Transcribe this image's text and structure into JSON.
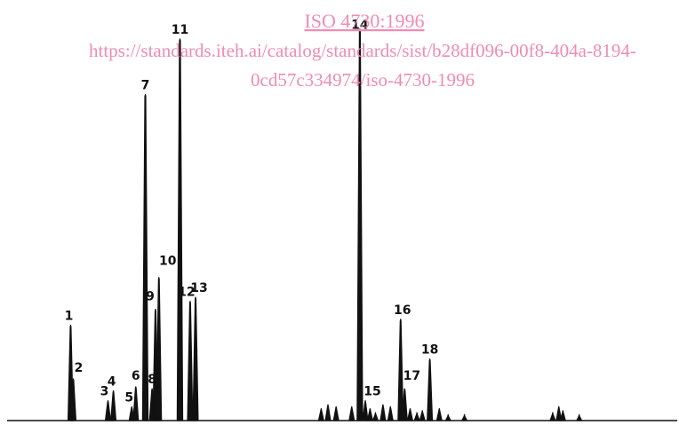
{
  "watermark": {
    "title": "ISO 4730:1996",
    "url_line1": "https://standards.iteh.ai/catalog/standards/sist/b28df096-00f8-404a-8194-",
    "url_line2": "0cd57c334974/iso-4730-1996",
    "color": "#f08cb0"
  },
  "chart_data": {
    "type": "line",
    "title": "",
    "xlabel": "",
    "ylabel": "",
    "grid": false,
    "xlim": [
      0,
      100
    ],
    "ylim": [
      0,
      100
    ],
    "line_color": "#111111",
    "peaks": [
      {
        "label": "1",
        "x": 10.4,
        "height": 24.0
      },
      {
        "label": "2",
        "x": 10.8,
        "height": 10.5
      },
      {
        "label": "3",
        "x": 15.9,
        "height": 5.0
      },
      {
        "label": "4",
        "x": 16.7,
        "height": 7.5
      },
      {
        "label": "5",
        "x": 19.4,
        "height": 3.5
      },
      {
        "label": "6",
        "x": 20.0,
        "height": 8.5
      },
      {
        "label": "7",
        "x": 21.4,
        "height": 82.0
      },
      {
        "label": "8",
        "x": 22.4,
        "height": 8.0
      },
      {
        "label": "9",
        "x": 22.9,
        "height": 28.0
      },
      {
        "label": "10",
        "x": 23.4,
        "height": 36.0
      },
      {
        "label": "11",
        "x": 26.5,
        "height": 96.0
      },
      {
        "label": "12",
        "x": 28.0,
        "height": 30.0
      },
      {
        "label": "13",
        "x": 28.8,
        "height": 31.0
      },
      {
        "label": "14",
        "x": 53.0,
        "height": 98.5
      },
      {
        "label": "15",
        "x": 53.8,
        "height": 5.0
      },
      {
        "label": "16",
        "x": 59.0,
        "height": 25.5
      },
      {
        "label": "17",
        "x": 59.6,
        "height": 8.0
      },
      {
        "label": "18",
        "x": 63.3,
        "height": 15.5
      }
    ],
    "unlabeled_peaks": [
      {
        "x": 47.3,
        "height": 3.0
      },
      {
        "x": 48.3,
        "height": 4.0
      },
      {
        "x": 49.5,
        "height": 3.5
      },
      {
        "x": 51.8,
        "height": 3.5
      },
      {
        "x": 54.5,
        "height": 3.0
      },
      {
        "x": 55.3,
        "height": 2.0
      },
      {
        "x": 56.4,
        "height": 4.0
      },
      {
        "x": 57.5,
        "height": 3.5
      },
      {
        "x": 60.4,
        "height": 3.0
      },
      {
        "x": 61.4,
        "height": 2.0
      },
      {
        "x": 62.2,
        "height": 2.5
      },
      {
        "x": 64.7,
        "height": 3.0
      },
      {
        "x": 66.0,
        "height": 1.5
      },
      {
        "x": 68.4,
        "height": 1.5
      },
      {
        "x": 81.4,
        "height": 2.0
      },
      {
        "x": 82.3,
        "height": 3.5
      },
      {
        "x": 82.9,
        "height": 2.5
      },
      {
        "x": 85.3,
        "height": 1.5
      }
    ]
  }
}
